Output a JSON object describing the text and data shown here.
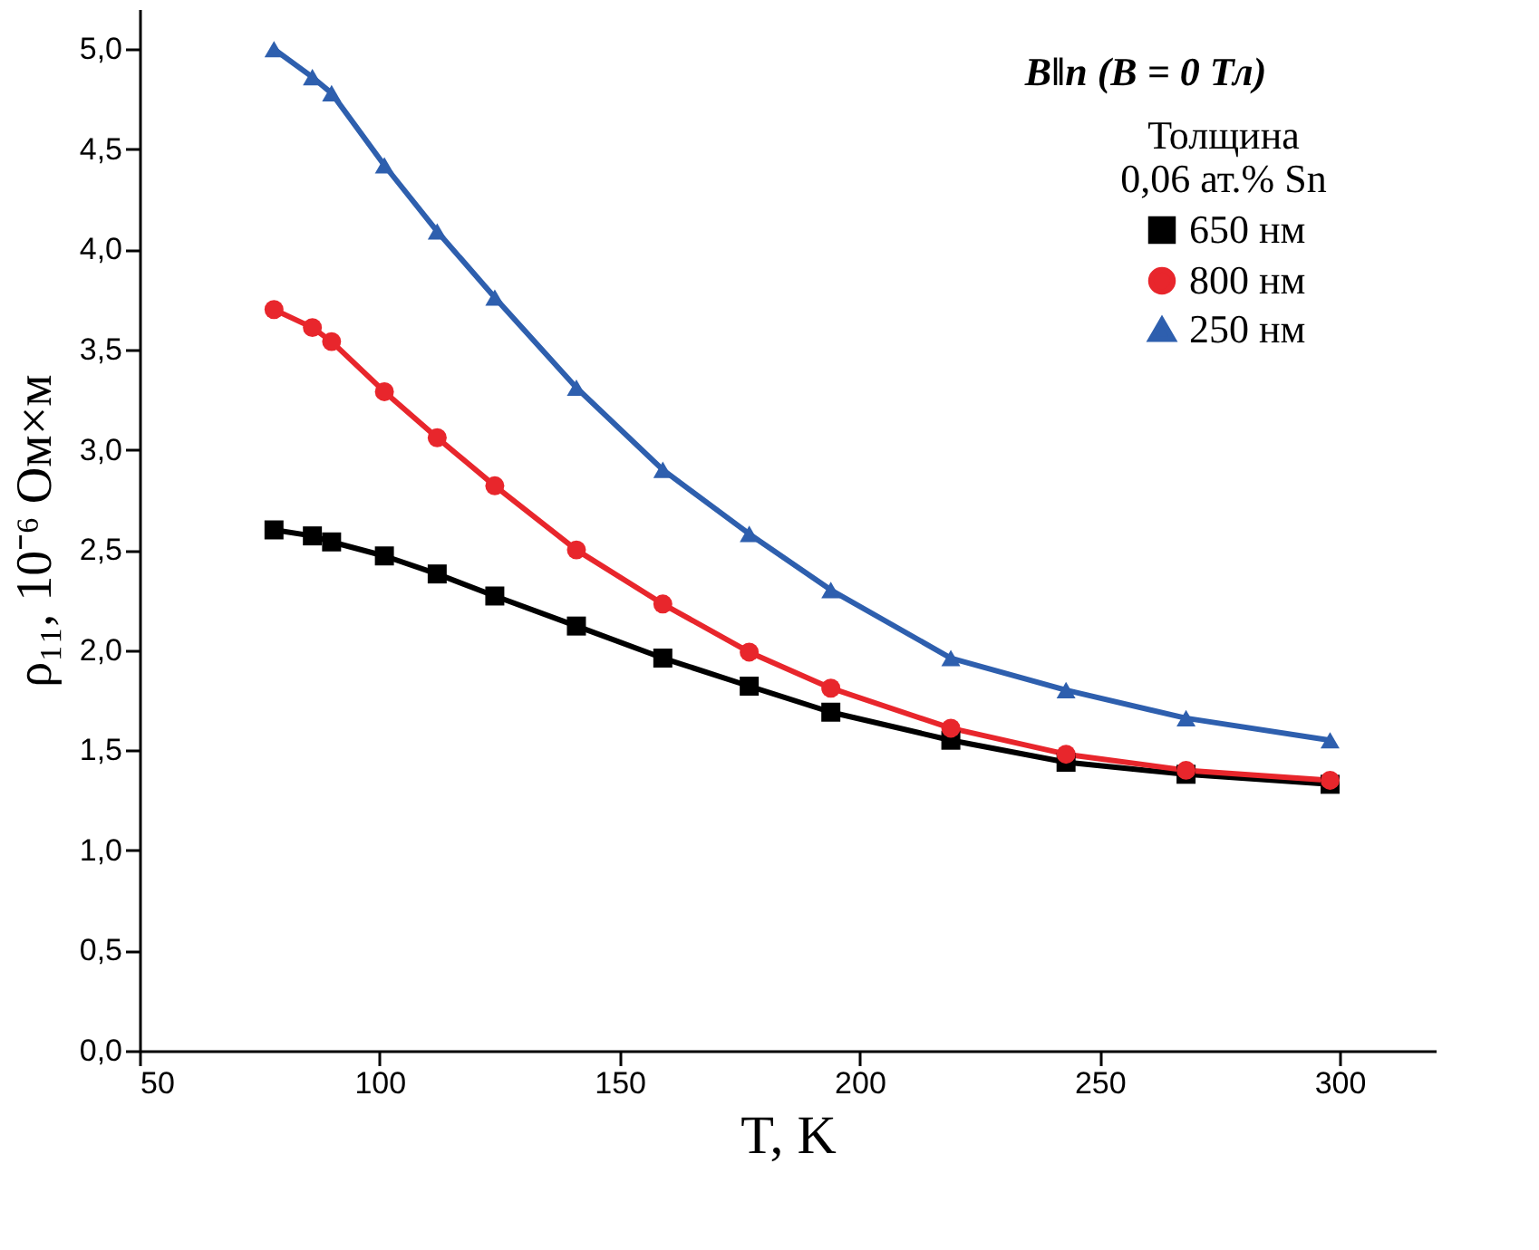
{
  "chart_data": {
    "type": "line",
    "xlabel": "T, K",
    "ylabel": "ρ₁₁, 10⁻⁶ Ом×м",
    "legend_title": [
      "Толщина",
      "0,06 ат.% Sn"
    ],
    "annotations": [
      "B‖n (B = 0 Тл)"
    ],
    "x": [
      78,
      86,
      90,
      101,
      112,
      124,
      141,
      159,
      177,
      194,
      219,
      243,
      268,
      298
    ],
    "series": [
      {
        "name": "650 нм",
        "color": "#000000",
        "marker": "square",
        "values": [
          2.6,
          2.57,
          2.54,
          2.47,
          2.38,
          2.27,
          2.12,
          1.96,
          1.82,
          1.69,
          1.55,
          1.44,
          1.38,
          1.33
        ]
      },
      {
        "name": "800 нм",
        "color": "#e8262c",
        "marker": "circle",
        "values": [
          3.7,
          3.61,
          3.54,
          3.29,
          3.06,
          2.82,
          2.5,
          2.23,
          1.99,
          1.81,
          1.61,
          1.48,
          1.4,
          1.35
        ]
      },
      {
        "name": "250 нм",
        "color": "#2e5fae",
        "marker": "triangle",
        "values": [
          5.0,
          4.86,
          4.78,
          4.42,
          4.09,
          3.76,
          3.31,
          2.9,
          2.58,
          2.3,
          1.96,
          1.8,
          1.66,
          1.55
        ]
      }
    ],
    "xlim": [
      50,
      320
    ],
    "xticks": [
      50,
      100,
      150,
      200,
      250,
      300
    ],
    "ylim": [
      0,
      5.2
    ],
    "yticks": [
      {
        "value": 0,
        "label": "0,0"
      },
      {
        "value": 0.5,
        "label": "0,5"
      },
      {
        "value": 1,
        "label": "1,0"
      },
      {
        "value": 1.5,
        "label": "1,5"
      },
      {
        "value": 2,
        "label": "2,0"
      },
      {
        "value": 2.5,
        "label": "2,5"
      },
      {
        "value": 3,
        "label": "3,0"
      },
      {
        "value": 3.5,
        "label": "3,5"
      },
      {
        "value": 4,
        "label": "4,0"
      },
      {
        "value": 4.5,
        "label": "4,5"
      },
      {
        "value": 5,
        "label": "5,0"
      }
    ],
    "grid": false,
    "legend": "top right",
    "line_style": "solid"
  }
}
